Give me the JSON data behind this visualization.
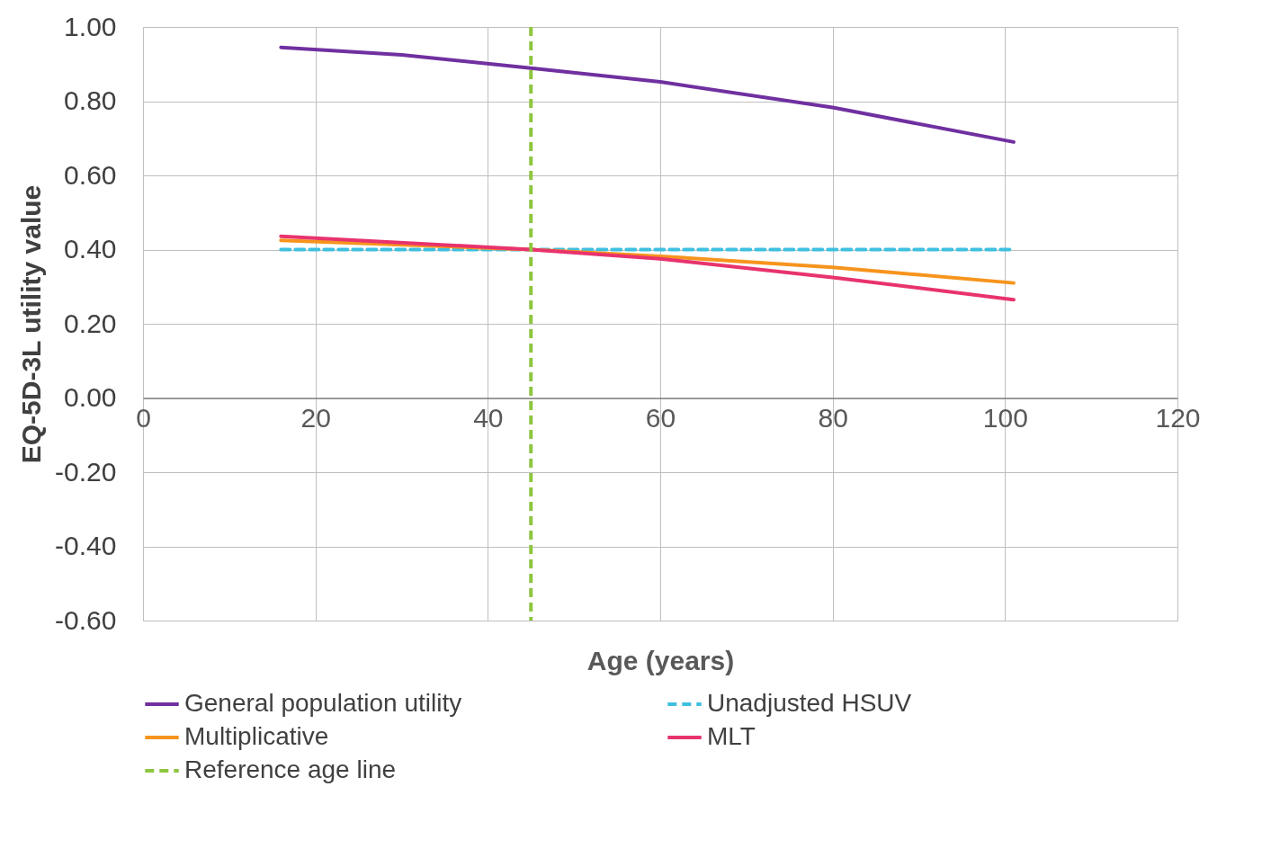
{
  "chart_data": {
    "type": "line",
    "xlabel": "Age (years)",
    "ylabel": "EQ-5D-3L utility value",
    "xlim": [
      0,
      120
    ],
    "xticks": [
      0,
      20,
      40,
      60,
      80,
      100,
      120
    ],
    "ylim": [
      -0.6,
      1.0
    ],
    "yticks": [
      {
        "value": -0.6,
        "label": "-0.60"
      },
      {
        "value": -0.4,
        "label": "-0.40"
      },
      {
        "value": -0.2,
        "label": "-0.20"
      },
      {
        "value": 0,
        "label": "0.00"
      },
      {
        "value": 0.2,
        "label": "0.20"
      },
      {
        "value": 0.4,
        "label": "0.40"
      },
      {
        "value": 0.6,
        "label": "0.60"
      },
      {
        "value": 0.8,
        "label": "0.80"
      },
      {
        "value": 1.0,
        "label": "1.00"
      }
    ],
    "grid": true,
    "legend": "bottom",
    "marker": "none",
    "series": [
      {
        "name": "General population utility",
        "color": "#7030a0",
        "x": [
          16,
          30,
          45,
          60,
          80,
          101
        ],
        "values": [
          0.945,
          0.925,
          0.889,
          0.852,
          0.783,
          0.69
        ]
      },
      {
        "name": "Unadjusted HSUV",
        "color": "#3fbfe0",
        "line_style": "dashed",
        "x": [
          16,
          101
        ],
        "values": [
          0.4,
          0.4
        ]
      },
      {
        "name": "Multiplicative",
        "color": "#f7941d",
        "x": [
          16,
          45,
          60,
          80,
          101
        ],
        "values": [
          0.425,
          0.4,
          0.382,
          0.352,
          0.31
        ]
      },
      {
        "name": "MLT",
        "color": "#e8336d",
        "x": [
          16,
          45,
          60,
          80,
          101
        ],
        "values": [
          0.436,
          0.4,
          0.375,
          0.325,
          0.265
        ]
      }
    ],
    "ref_lines": [
      {
        "axis": "x",
        "value": 45,
        "label": "Reference age line",
        "color": "#8dc63f",
        "line_style": "dashed"
      }
    ]
  }
}
